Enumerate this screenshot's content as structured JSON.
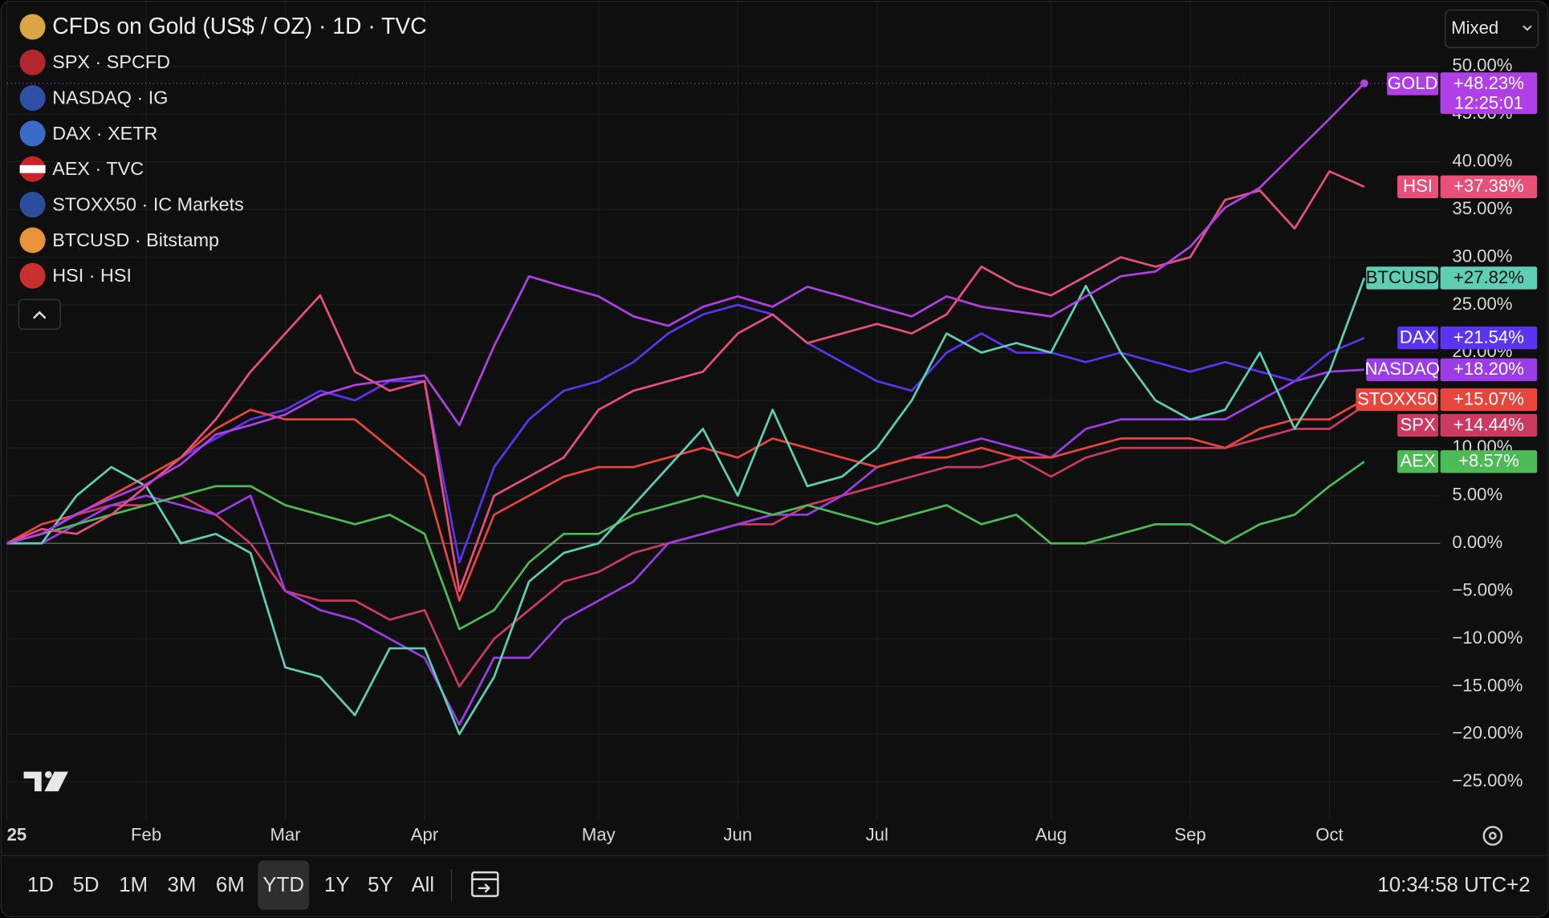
{
  "chart_data": {
    "type": "line",
    "title": "CFDs on Gold (US$ / OZ) · 1D · TVC",
    "scale_mode": "Mixed",
    "categories": [
      "25",
      null,
      null,
      null,
      "Feb",
      null,
      null,
      null,
      "Mar",
      null,
      null,
      null,
      "Apr",
      null,
      null,
      null,
      null,
      "May",
      null,
      null,
      null,
      "Jun",
      null,
      null,
      null,
      "Jul",
      null,
      null,
      null,
      null,
      "Aug",
      null,
      null,
      null,
      "Sep",
      null,
      null,
      null,
      "Oct",
      null
    ],
    "ylim": [
      -29,
      56.94
    ],
    "yticks": [
      {
        "value": -25,
        "label": "−25.00%"
      },
      {
        "value": -20,
        "label": "−20.00%"
      },
      {
        "value": -15,
        "label": "−15.00%"
      },
      {
        "value": -10,
        "label": "−10.00%"
      },
      {
        "value": -5,
        "label": "−5.00%"
      },
      {
        "value": 0,
        "label": "0.00%"
      },
      {
        "value": 5,
        "label": "5.00%"
      },
      {
        "value": 10,
        "label": "10.00%"
      },
      {
        "value": 15,
        "label": "15.00%"
      },
      {
        "value": 20,
        "label": "20.00%"
      },
      {
        "value": 25,
        "label": "25.00%"
      },
      {
        "value": 30,
        "label": "30.00%"
      },
      {
        "value": 35,
        "label": "35.00%"
      },
      {
        "value": 40,
        "label": "40.00%"
      },
      {
        "value": 45,
        "label": "45.00%"
      },
      {
        "value": 50,
        "label": "50.00%"
      }
    ],
    "grid": true,
    "countdown": "12:25:01",
    "series": [
      {
        "name": "GOLD",
        "color": "#b040e6",
        "values": [
          0,
          1,
          3.1,
          4.7,
          6.2,
          8.3,
          11.4,
          12.4,
          13.5,
          15.5,
          16.6,
          17.1,
          17.6,
          12.4,
          20.7,
          28,
          26.9,
          25.9,
          23.8,
          22.8,
          24.8,
          25.9,
          24.8,
          26.9,
          25.9,
          24.8,
          23.8,
          25.9,
          24.8,
          24.3,
          23.8,
          25.9,
          28,
          28.5,
          31.1,
          35.2,
          37.3,
          40.9,
          44.5,
          48.23
        ],
        "value_labels": [
          null,
          null,
          null,
          null,
          null,
          null,
          null,
          null,
          null,
          null,
          null,
          null,
          null,
          null,
          null,
          null,
          null,
          null,
          null,
          null,
          null,
          null,
          null,
          null,
          null,
          null,
          null,
          null,
          null,
          null,
          null,
          null,
          null,
          null,
          null,
          null,
          null,
          null,
          null,
          "+48.23%"
        ]
      },
      {
        "name": "SPX",
        "legend": "SPX · SPCFD",
        "color": "#cc3a62",
        "values": [
          0,
          1,
          3,
          4,
          4,
          5,
          3,
          0,
          -5,
          -6,
          -6,
          -8,
          -7,
          -15,
          -10,
          -7,
          -4,
          -3,
          -1,
          0,
          1,
          2,
          2,
          4,
          5,
          6,
          7,
          8,
          8,
          9,
          7,
          9,
          10,
          10,
          10,
          10,
          11,
          12,
          12,
          14.44
        ],
        "value_labels": [
          null,
          null,
          null,
          null,
          null,
          null,
          null,
          null,
          null,
          null,
          null,
          null,
          null,
          null,
          null,
          null,
          null,
          null,
          null,
          null,
          null,
          null,
          null,
          null,
          null,
          null,
          null,
          null,
          null,
          null,
          null,
          null,
          null,
          null,
          null,
          null,
          null,
          null,
          null,
          "+14.44%"
        ]
      },
      {
        "name": "NASDAQ",
        "legend": "NASDAQ · IG",
        "color": "#9b3ce6",
        "values": [
          0,
          0,
          2,
          4,
          5,
          4,
          3,
          5,
          -5,
          -7,
          -8,
          -10,
          -12,
          -19,
          -12,
          -12,
          -8,
          -6,
          -4,
          0,
          1,
          2,
          3,
          3,
          5,
          8,
          9,
          10,
          11,
          10,
          9,
          12,
          13,
          13,
          13,
          13,
          15,
          17,
          18,
          18.2
        ],
        "value_labels": [
          null,
          null,
          null,
          null,
          null,
          null,
          null,
          null,
          null,
          null,
          null,
          null,
          null,
          null,
          null,
          null,
          null,
          null,
          null,
          null,
          null,
          null,
          null,
          null,
          null,
          null,
          null,
          null,
          null,
          null,
          null,
          null,
          null,
          null,
          null,
          null,
          null,
          null,
          null,
          "+18.20%"
        ]
      },
      {
        "name": "DAX",
        "legend": "DAX · XETR",
        "color": "#5a34f0",
        "values": [
          0,
          1,
          3,
          5,
          7,
          9,
          11,
          13,
          14,
          16,
          15,
          17,
          17,
          -2,
          8,
          13,
          16,
          17,
          19,
          22,
          24,
          25,
          24,
          21,
          19,
          17,
          16,
          20,
          22,
          20,
          20,
          19,
          20,
          19,
          18,
          19,
          18,
          17,
          20,
          21.54
        ],
        "value_labels": [
          null,
          null,
          null,
          null,
          null,
          null,
          null,
          null,
          null,
          null,
          null,
          null,
          null,
          null,
          null,
          null,
          null,
          null,
          null,
          null,
          null,
          null,
          null,
          null,
          null,
          null,
          null,
          null,
          null,
          null,
          null,
          null,
          null,
          null,
          null,
          null,
          null,
          null,
          null,
          "+21.54%"
        ]
      },
      {
        "name": "AEX",
        "legend": "AEX · TVC",
        "color": "#4cbb55",
        "values": [
          0,
          1,
          2,
          3,
          4,
          5,
          6,
          6,
          4,
          3,
          2,
          3,
          1,
          -9,
          -7,
          -2,
          1,
          1,
          3,
          4,
          5,
          4,
          3,
          4,
          3,
          2,
          3,
          4,
          2,
          3,
          0,
          0,
          1,
          2,
          2,
          0,
          2,
          3,
          6,
          8.57
        ],
        "value_labels": [
          null,
          null,
          null,
          null,
          null,
          null,
          null,
          null,
          null,
          null,
          null,
          null,
          null,
          null,
          null,
          null,
          null,
          null,
          null,
          null,
          null,
          null,
          null,
          null,
          null,
          null,
          null,
          null,
          null,
          null,
          null,
          null,
          null,
          null,
          null,
          null,
          null,
          null,
          null,
          "+8.57%"
        ]
      },
      {
        "name": "STOXX50",
        "legend": "STOXX50 · IC Markets",
        "color": "#e8453c",
        "values": [
          0,
          2,
          3,
          5,
          7,
          9,
          12,
          14,
          13,
          13,
          13,
          10,
          7,
          -6,
          3,
          5,
          7,
          8,
          8,
          9,
          10,
          9,
          11,
          10,
          9,
          8,
          9,
          9,
          10,
          9,
          9,
          10,
          11,
          11,
          11,
          10,
          12,
          13,
          13,
          15.07
        ],
        "value_labels": [
          null,
          null,
          null,
          null,
          null,
          null,
          null,
          null,
          null,
          null,
          null,
          null,
          null,
          null,
          null,
          null,
          null,
          null,
          null,
          null,
          null,
          null,
          null,
          null,
          null,
          null,
          null,
          null,
          null,
          null,
          null,
          null,
          null,
          null,
          null,
          null,
          null,
          null,
          null,
          "+15.07%"
        ]
      },
      {
        "name": "BTCUSD",
        "legend": "BTCUSD · Bitstamp",
        "color": "#5ecfb4",
        "values": [
          0,
          0,
          5,
          8,
          6,
          0,
          1,
          -1,
          -13,
          -14,
          -18,
          -11,
          -11,
          -20,
          -14,
          -4,
          -1,
          0,
          4,
          8,
          12,
          5,
          14,
          6,
          7,
          10,
          15,
          22,
          20,
          21,
          20,
          27,
          20,
          15,
          13,
          14,
          20,
          12,
          18,
          27.82
        ],
        "value_labels": [
          null,
          null,
          null,
          null,
          null,
          null,
          null,
          null,
          null,
          null,
          null,
          null,
          null,
          null,
          null,
          null,
          null,
          null,
          null,
          null,
          null,
          null,
          null,
          null,
          null,
          null,
          null,
          null,
          null,
          null,
          null,
          null,
          null,
          null,
          null,
          null,
          null,
          null,
          null,
          "+27.82%"
        ]
      },
      {
        "name": "HSI",
        "legend": "HSI · HSI",
        "color": "#e8507a",
        "values": [
          0,
          1.5,
          1,
          3,
          6,
          9,
          13,
          18,
          22,
          26,
          18,
          16,
          17,
          -5,
          5,
          7,
          9,
          14,
          16,
          17,
          18,
          22,
          24,
          21,
          22,
          23,
          22,
          24,
          29,
          27,
          26,
          28,
          30,
          29,
          30,
          36,
          37,
          33,
          39,
          37.38
        ],
        "value_labels": [
          null,
          null,
          null,
          null,
          null,
          null,
          null,
          null,
          null,
          null,
          null,
          null,
          null,
          null,
          null,
          null,
          null,
          null,
          null,
          null,
          null,
          null,
          null,
          null,
          null,
          null,
          null,
          null,
          null,
          null,
          null,
          null,
          null,
          null,
          null,
          null,
          null,
          null,
          null,
          "+37.38%"
        ]
      }
    ]
  },
  "toolbar": {
    "ranges": [
      "1D",
      "5D",
      "1M",
      "3M",
      "6M",
      "YTD",
      "1Y",
      "5Y",
      "All"
    ],
    "active_range": 5,
    "time": "10:34:58 UTC+2"
  }
}
